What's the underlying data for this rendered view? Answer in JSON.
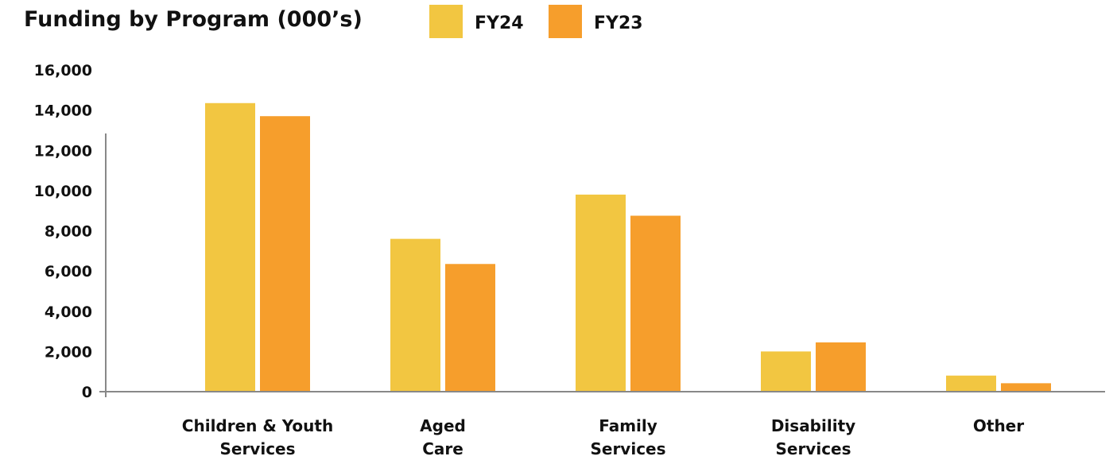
{
  "chart_data": {
    "type": "bar",
    "title": "Funding by Program (000’s)",
    "xlabel": "",
    "ylabel": "",
    "ylim": [
      0,
      16000
    ],
    "yticks": [
      "0",
      "2,000",
      "4,000",
      "6,000",
      "8,000",
      "10,000",
      "12,000",
      "14,000",
      "16,000"
    ],
    "ytick_values": [
      0,
      2000,
      4000,
      6000,
      8000,
      10000,
      12000,
      14000,
      16000
    ],
    "categories": [
      [
        "Children & Youth",
        "Services"
      ],
      [
        "Aged",
        "Care"
      ],
      [
        "Family",
        "Services"
      ],
      [
        "Disability",
        "Services"
      ],
      [
        "Other"
      ]
    ],
    "series": [
      {
        "name": "FY24",
        "color": "#F2C641",
        "values": [
          14350,
          7600,
          9800,
          2000,
          800
        ]
      },
      {
        "name": "FY23",
        "color": "#F69E2C",
        "values": [
          13700,
          6350,
          8750,
          2450,
          420
        ]
      }
    ],
    "grid": false,
    "legend_position": "top"
  }
}
